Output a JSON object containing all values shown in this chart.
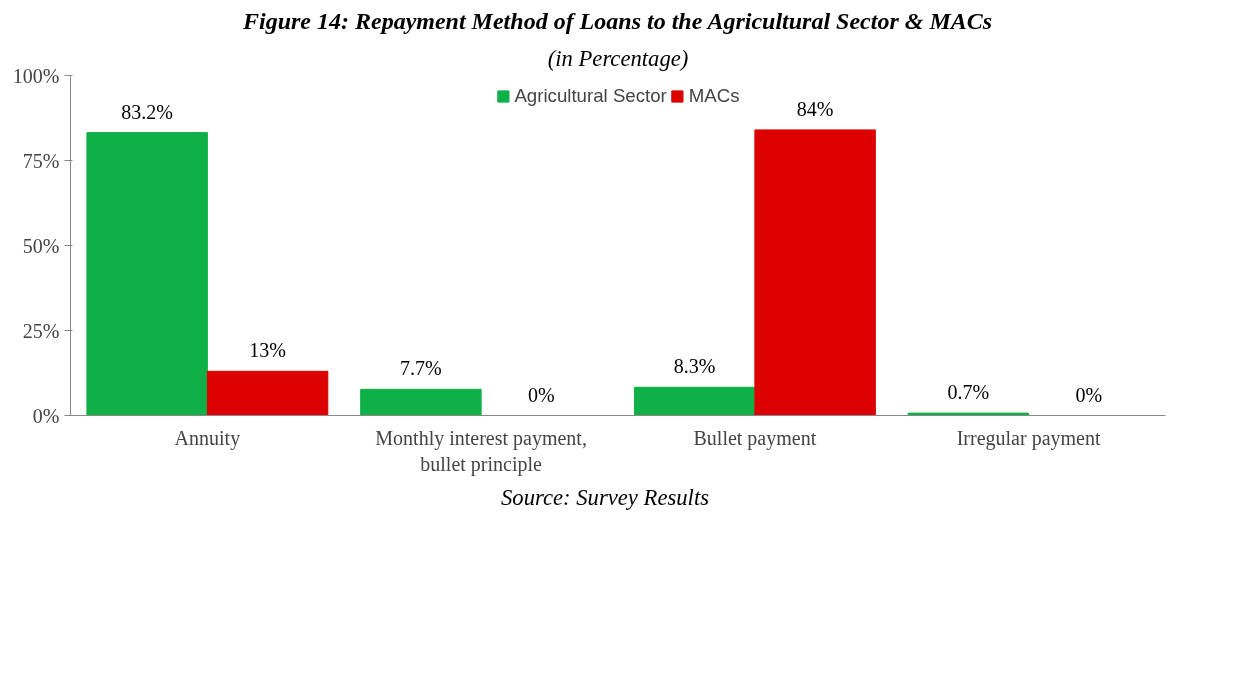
{
  "chart_data": {
    "type": "bar",
    "title": "Figure 14: Repayment Method of Loans to the Agricultural Sector & MACs",
    "subtitle": "(in Percentage)",
    "categories": [
      "Annuity",
      "Monthly interest payment,\nbullet principle",
      "Bullet payment",
      "Irregular payment"
    ],
    "series": [
      {
        "name": "Agricultural Sector",
        "color": "#10b048",
        "values": [
          83.2,
          7.7,
          8.3,
          0.7
        ],
        "value_labels": [
          "83.2%",
          "7.7%",
          "8.3%",
          "0.7%"
        ]
      },
      {
        "name": "MACs",
        "color": "#dc0000",
        "values": [
          13,
          0,
          84,
          0
        ],
        "value_labels": [
          "13%",
          "0%",
          "84%",
          "0%"
        ]
      }
    ],
    "ylim": [
      0,
      100
    ],
    "yticks": [
      {
        "value": 0,
        "label": "0%"
      },
      {
        "value": 25,
        "label": "25%"
      },
      {
        "value": 50,
        "label": "50%"
      },
      {
        "value": 75,
        "label": "75%"
      },
      {
        "value": 100,
        "label": "100%"
      }
    ],
    "grid": false,
    "legend": "top",
    "annotations": [
      "Source: Survey Results"
    ]
  }
}
